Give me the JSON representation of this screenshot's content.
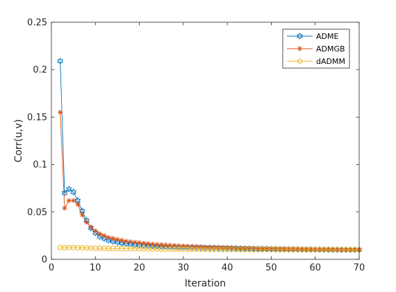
{
  "chart_data": {
    "type": "line",
    "xlabel": "Iteration",
    "ylabel": "Corr(u,v)",
    "xlim": [
      0,
      70
    ],
    "ylim": [
      0,
      0.25
    ],
    "xticks": [
      0,
      10,
      20,
      30,
      40,
      50,
      60,
      70
    ],
    "yticks": [
      0,
      0.05,
      0.1,
      0.15,
      0.2,
      0.25
    ],
    "ytick_labels": [
      "0",
      "0.05",
      "0.1",
      "0.15",
      "0.2",
      "0.25"
    ],
    "grid": false,
    "legend_position": "top-right",
    "x": [
      2,
      3,
      4,
      5,
      6,
      7,
      8,
      9,
      10,
      11,
      12,
      13,
      14,
      15,
      16,
      17,
      18,
      19,
      20,
      21,
      22,
      23,
      24,
      25,
      26,
      27,
      28,
      29,
      30,
      31,
      32,
      33,
      34,
      35,
      36,
      37,
      38,
      39,
      40,
      41,
      42,
      43,
      44,
      45,
      46,
      47,
      48,
      49,
      50,
      51,
      52,
      53,
      54,
      55,
      56,
      57,
      58,
      59,
      60,
      61,
      62,
      63,
      64,
      65,
      66,
      67,
      68,
      69,
      70
    ],
    "series": [
      {
        "name": "ADME",
        "color": "#0072BD",
        "marker": "hexagram",
        "values": [
          0.209,
          0.07,
          0.074,
          0.071,
          0.062,
          0.051,
          0.041,
          0.033,
          0.028,
          0.024,
          0.022,
          0.02,
          0.019,
          0.018,
          0.017,
          0.0165,
          0.016,
          0.0155,
          0.015,
          0.0147,
          0.0144,
          0.0141,
          0.0138,
          0.0136,
          0.0134,
          0.0132,
          0.013,
          0.0128,
          0.0127,
          0.0126,
          0.0125,
          0.0124,
          0.0123,
          0.0122,
          0.0121,
          0.012,
          0.0119,
          0.0118,
          0.0117,
          0.0116,
          0.0115,
          0.0114,
          0.0113,
          0.0112,
          0.0111,
          0.011,
          0.011,
          0.0109,
          0.0108,
          0.0108,
          0.0107,
          0.0107,
          0.0106,
          0.0106,
          0.0105,
          0.0105,
          0.0104,
          0.0104,
          0.0103,
          0.0103,
          0.0102,
          0.0102,
          0.0101,
          0.0101,
          0.0101,
          0.01,
          0.01,
          0.01,
          0.01
        ]
      },
      {
        "name": "ADMGB",
        "color": "#D95319",
        "marker": "asterisk",
        "values": [
          0.155,
          0.054,
          0.062,
          0.062,
          0.058,
          0.047,
          0.039,
          0.034,
          0.03,
          0.027,
          0.025,
          0.023,
          0.022,
          0.021,
          0.02,
          0.019,
          0.0185,
          0.018,
          0.0175,
          0.017,
          0.0165,
          0.016,
          0.0157,
          0.0154,
          0.0151,
          0.0148,
          0.0145,
          0.0142,
          0.014,
          0.0138,
          0.0136,
          0.0134,
          0.0132,
          0.013,
          0.0128,
          0.0127,
          0.0126,
          0.0124,
          0.0123,
          0.0122,
          0.0121,
          0.012,
          0.0119,
          0.0118,
          0.0117,
          0.0116,
          0.0115,
          0.0114,
          0.0113,
          0.0113,
          0.0112,
          0.0111,
          0.011,
          0.011,
          0.0109,
          0.0108,
          0.0108,
          0.0107,
          0.0107,
          0.0106,
          0.0106,
          0.0105,
          0.0105,
          0.0104,
          0.0104,
          0.0103,
          0.0103,
          0.0103,
          0.0102
        ]
      },
      {
        "name": "dADMM",
        "color": "#EDB120",
        "marker": "circle",
        "values": [
          0.0125,
          0.0125,
          0.0124,
          0.0123,
          0.0122,
          0.0121,
          0.012,
          0.0119,
          0.0118,
          0.0117,
          0.0116,
          0.0115,
          0.0114,
          0.0114,
          0.0113,
          0.0112,
          0.0112,
          0.0111,
          0.0111,
          0.011,
          0.011,
          0.0109,
          0.0109,
          0.0108,
          0.0108,
          0.0108,
          0.0107,
          0.0107,
          0.0107,
          0.0106,
          0.0106,
          0.0106,
          0.0106,
          0.0105,
          0.0105,
          0.0105,
          0.0105,
          0.0104,
          0.0104,
          0.0104,
          0.0104,
          0.0104,
          0.0103,
          0.0103,
          0.0103,
          0.0103,
          0.0103,
          0.0103,
          0.0102,
          0.0102,
          0.0102,
          0.0102,
          0.0102,
          0.0102,
          0.0102,
          0.0101,
          0.0101,
          0.0101,
          0.0101,
          0.0101,
          0.0101,
          0.0101,
          0.0101,
          0.0101,
          0.01,
          0.01,
          0.01,
          0.01,
          0.01
        ]
      }
    ]
  }
}
